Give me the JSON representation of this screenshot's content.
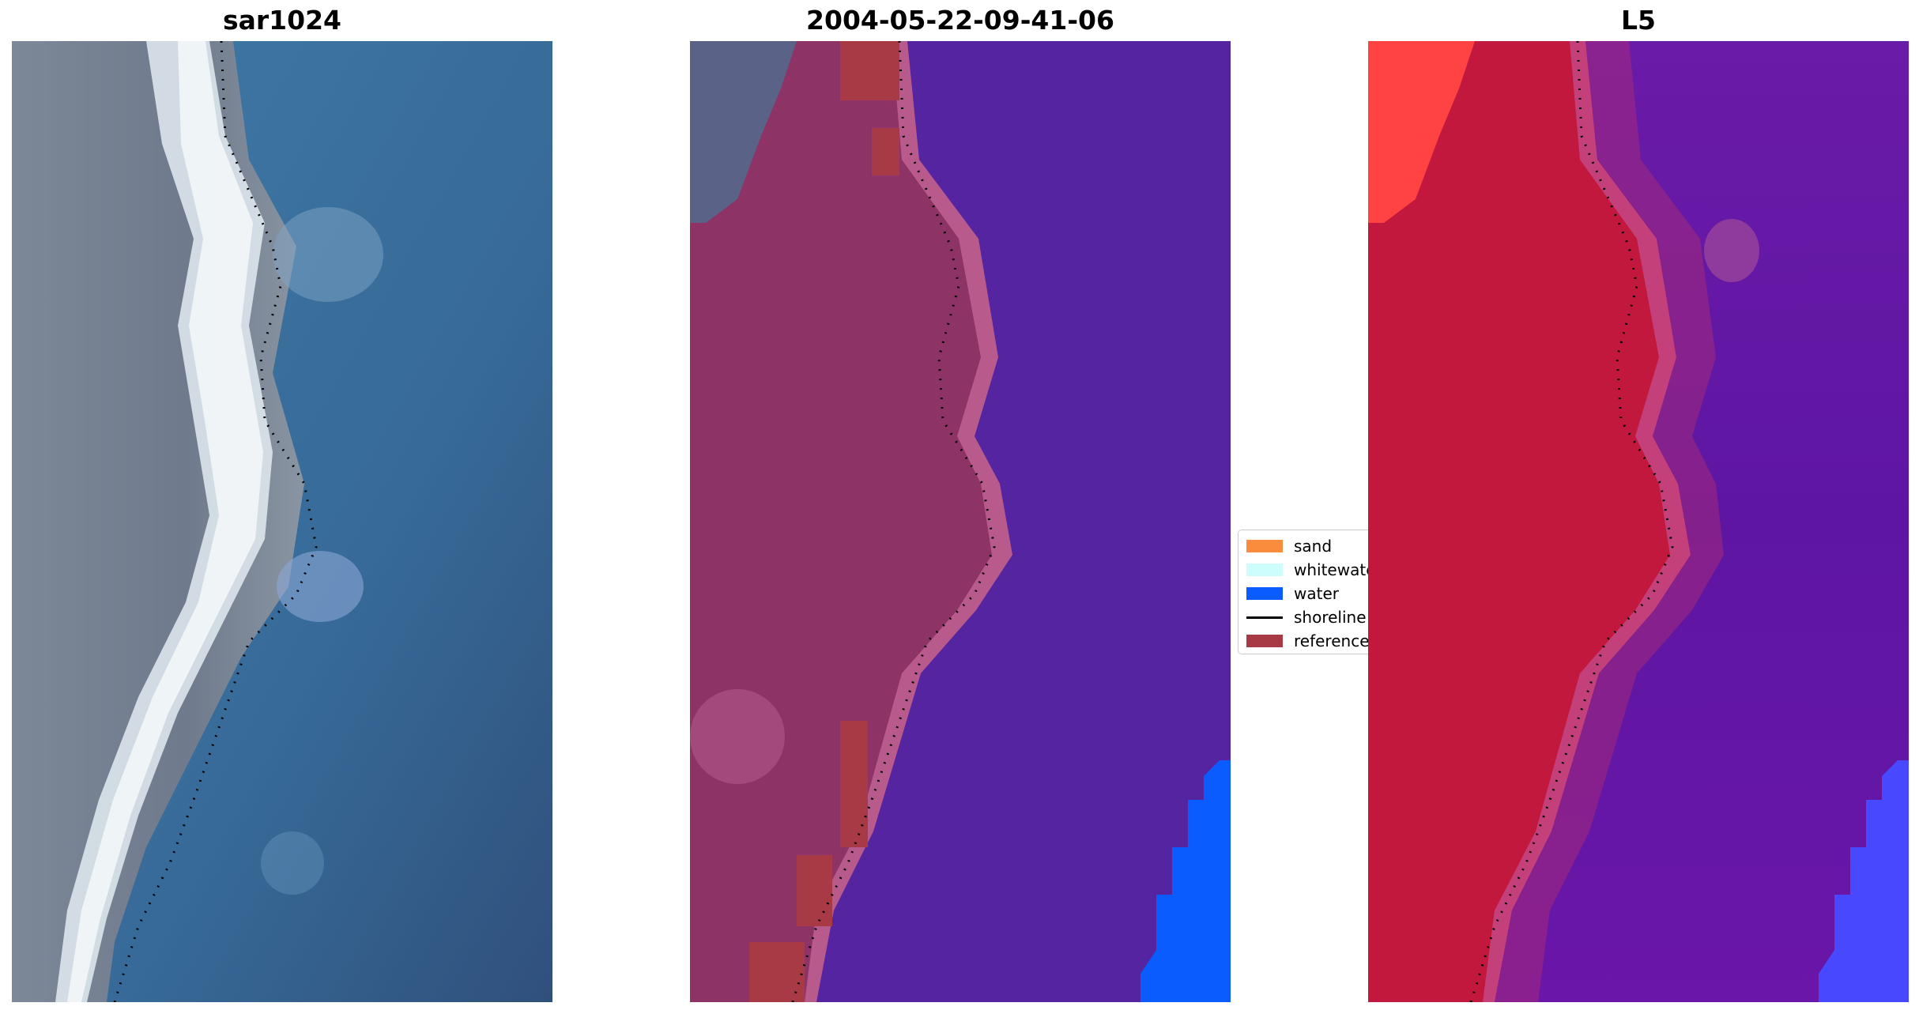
{
  "panels": [
    {
      "title": "sar1024"
    },
    {
      "title": "2004-05-22-09-41-06"
    },
    {
      "title": "L5"
    }
  ],
  "legend": {
    "items": [
      {
        "label": "sand",
        "color": "#f98d3d",
        "kind": "patch"
      },
      {
        "label": "whitewater",
        "color": "#cdfdfd",
        "kind": "patch"
      },
      {
        "label": "water",
        "color": "#0a5cff",
        "kind": "patch"
      },
      {
        "label": "shoreline",
        "color": "#000000",
        "kind": "line"
      },
      {
        "label": "reference",
        "color": "#a83a45",
        "kind": "patch"
      }
    ]
  },
  "colors": {
    "rgb_land": "#7d8a98",
    "rgb_water": "#3b72a0",
    "rgb_beach": "#dfe8ee",
    "class_land": "#8e3366",
    "class_beach": "#b95a8c",
    "class_water": "#5524a0",
    "index_land": "#c2183e",
    "index_water": "#5f18a0",
    "index_corner": "#ff4242"
  }
}
